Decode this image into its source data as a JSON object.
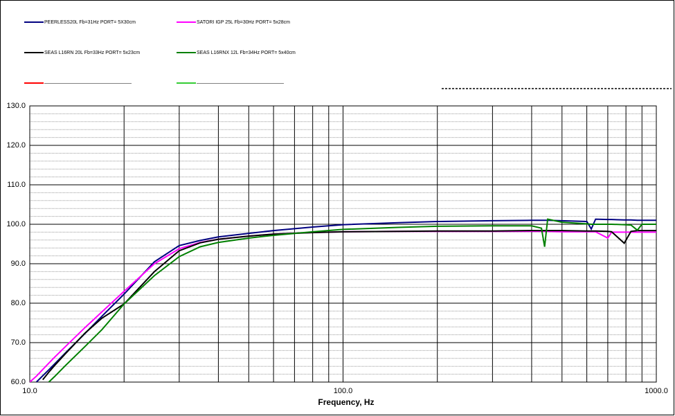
{
  "chart_data": {
    "type": "line",
    "xlabel": "Frequency, Hz",
    "xscale": "log",
    "grid": true,
    "x": [
      10,
      10.5,
      11,
      11.5,
      12,
      13,
      15,
      17,
      20,
      25,
      30,
      35,
      40,
      50,
      60,
      80,
      100,
      150,
      200,
      300,
      400,
      430,
      440,
      450,
      500,
      600,
      620,
      640,
      700,
      720,
      790,
      830,
      870,
      900,
      1000
    ],
    "xlim": [
      10,
      1000
    ],
    "xticks": [
      {
        "value": 10,
        "label": "10.0"
      },
      {
        "value": 100,
        "label": "100.0"
      },
      {
        "value": 1000,
        "label": "1000.0"
      }
    ],
    "xminorticks": [
      20,
      30,
      40,
      50,
      60,
      70,
      80,
      90,
      200,
      300,
      400,
      500,
      600,
      700,
      800,
      900
    ],
    "ylim": [
      60,
      130
    ],
    "yticks": [
      {
        "value": 60,
        "label": "60.0"
      },
      {
        "value": 70,
        "label": "70.0"
      },
      {
        "value": 80,
        "label": "80.0"
      },
      {
        "value": 90,
        "label": "90.0"
      },
      {
        "value": 100,
        "label": "100.0"
      },
      {
        "value": 110,
        "label": "110.0"
      },
      {
        "value": 120,
        "label": "120.0"
      },
      {
        "value": 130,
        "label": "130.0"
      }
    ],
    "yminorticks": [
      62,
      64,
      66,
      68,
      72,
      74,
      76,
      78,
      82,
      84,
      86,
      88,
      92,
      94,
      96,
      98,
      102,
      104,
      106,
      108,
      112,
      114,
      116,
      118,
      122,
      124,
      126,
      128
    ],
    "series": [
      {
        "name": "PEERLESS20L Fb=31Hz PORT= 5X30cm",
        "color": "#000080",
        "values": [
          null,
          60,
          61.6,
          63.1,
          64.6,
          67.4,
          72.3,
          76.7,
          82.3,
          90.5,
          94.6,
          95.9,
          96.8,
          97.7,
          98.4,
          99.3,
          99.9,
          100.4,
          100.7,
          100.9,
          101,
          101,
          101,
          101,
          100.9,
          100.7,
          98.8,
          101.3,
          101.2,
          101.2,
          101.1,
          101.1,
          101,
          101,
          101
        ]
      },
      {
        "name": "SATORI IGP 25L Fb=30Hz PORT= 5x28cm",
        "color": "#ff00ff",
        "values": [
          60,
          61.5,
          63.2,
          64.8,
          66.3,
          69,
          73.8,
          77.8,
          83,
          90,
          93.8,
          95.4,
          96.2,
          97,
          97.5,
          97.9,
          98.1,
          98.2,
          98.2,
          98.2,
          98.2,
          98.2,
          98.2,
          98.2,
          98.1,
          98.1,
          98.1,
          98.1,
          96.5,
          98,
          98,
          98,
          98,
          98,
          98
        ]
      },
      {
        "name": "SEAS L16RN 20L Fb=33Hz PORT= 5x23cm",
        "color": "#000000",
        "values": [
          null,
          null,
          60.6,
          62.5,
          64.2,
          67.2,
          72.4,
          76.2,
          79.8,
          88,
          93.3,
          95.3,
          96.2,
          97,
          97.5,
          97.9,
          98.1,
          98.2,
          98.3,
          98.3,
          98.4,
          98.4,
          98.4,
          98.4,
          98.4,
          98.3,
          98.3,
          98.3,
          98.2,
          98.1,
          95.2,
          98.2,
          98.4,
          98.4,
          98.4
        ]
      },
      {
        "name": "SEAS L16RNX 12L Fb=34Hz PORT= 5x40cm",
        "color": "#008000",
        "values": [
          null,
          null,
          null,
          60,
          61.4,
          64.2,
          69,
          73.3,
          79.8,
          87,
          91.8,
          94.3,
          95.4,
          96.5,
          97.2,
          98.1,
          98.7,
          99.2,
          99.5,
          99.6,
          99.6,
          99,
          94.3,
          101.3,
          100.5,
          100.1,
          100,
          100,
          100,
          100,
          99.9,
          99.8,
          98.5,
          100,
          100
        ]
      },
      {
        "name": "——————————————————",
        "color": "#ff0000",
        "values": [
          null,
          null,
          null,
          null,
          null,
          null,
          null,
          null,
          null,
          null,
          null,
          null,
          null,
          null,
          null,
          null,
          null,
          null,
          null,
          null,
          null,
          null,
          null,
          null,
          null,
          null,
          null,
          null,
          null,
          null,
          null,
          null,
          null,
          null,
          null
        ]
      },
      {
        "name": "——————————————————",
        "color": "#33cc33",
        "values": [
          null,
          null,
          null,
          null,
          null,
          null,
          null,
          null,
          null,
          null,
          null,
          null,
          null,
          null,
          null,
          null,
          null,
          null,
          null,
          null,
          null,
          null,
          null,
          null,
          null,
          null,
          null,
          null,
          null,
          null,
          null,
          null,
          null,
          null,
          null
        ]
      }
    ]
  }
}
